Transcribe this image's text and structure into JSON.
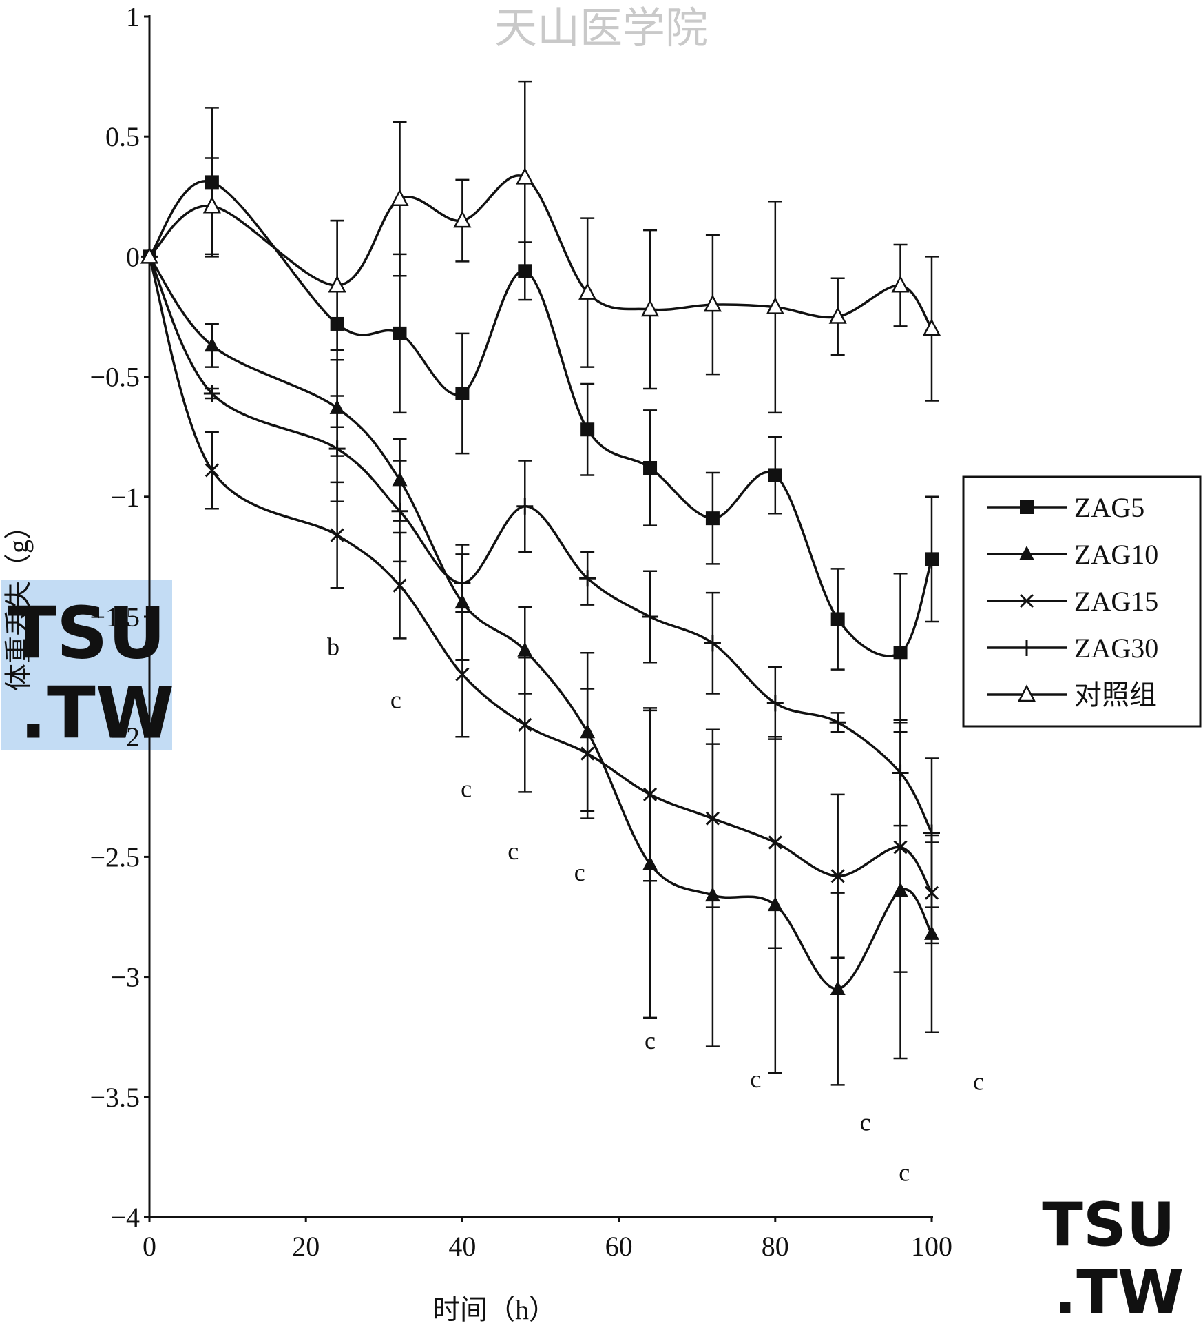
{
  "watermarks": {
    "top_text": "天山医学院",
    "logo_text_1": "TSU",
    "logo_text_2": ".TW"
  },
  "chart_data": {
    "type": "line",
    "xlabel": "时间（h）",
    "ylabel": "体重丢失（g）",
    "xlim": [
      0,
      100
    ],
    "ylim": [
      -4,
      1
    ],
    "xticks": [
      "0",
      "20",
      "40",
      "60",
      "80",
      "100"
    ],
    "yticks": [
      "1",
      "0.5",
      "0",
      "−0.5",
      "−1",
      "−1.5",
      "−2",
      "−2.5",
      "−3",
      "−3.5",
      "−4"
    ],
    "x": [
      0,
      8,
      24,
      32,
      40,
      48,
      56,
      64,
      72,
      80,
      88,
      96,
      100
    ],
    "series": [
      {
        "name": "ZAG5",
        "marker": "square-filled",
        "values": [
          0,
          0.31,
          -0.28,
          -0.32,
          -0.57,
          -0.06,
          -0.72,
          -0.88,
          -1.09,
          -0.91,
          -1.51,
          -1.65,
          -1.26
        ],
        "errors": [
          0,
          0.31,
          0.43,
          0.33,
          0.25,
          0.12,
          0.19,
          0.24,
          0.19,
          0.16,
          0.21,
          0.33,
          0.26
        ]
      },
      {
        "name": "ZAG10",
        "marker": "triangle-filled",
        "values": [
          0,
          -0.37,
          -0.63,
          -0.93,
          -1.44,
          -1.64,
          -1.98,
          -2.53,
          -2.66,
          -2.7,
          -3.05,
          -2.64,
          -2.82
        ],
        "errors": [
          0,
          0.09,
          0.2,
          0.17,
          0.24,
          0.18,
          0.33,
          0.64,
          0.63,
          0.7,
          0.4,
          0.7,
          0.41
        ]
      },
      {
        "name": "ZAG15",
        "marker": "x",
        "values": [
          0,
          -0.89,
          -1.16,
          -1.37,
          -1.74,
          -1.95,
          -2.07,
          -2.24,
          -2.34,
          -2.44,
          -2.58,
          -2.46,
          -2.65
        ],
        "errors": [
          0,
          0.16,
          0.22,
          0.22,
          0.26,
          0.28,
          0.27,
          0.36,
          0.37,
          0.44,
          0.34,
          0.52,
          0.21
        ]
      },
      {
        "name": "ZAG30",
        "marker": "plus",
        "values": [
          0,
          -0.57,
          -0.8,
          -1.06,
          -1.36,
          -1.04,
          -1.34,
          -1.5,
          -1.61,
          -1.86,
          -1.94,
          -2.15,
          -2.4
        ],
        "errors": [
          0,
          0.02,
          0.22,
          0.21,
          0.12,
          0.19,
          0.11,
          0.19,
          0.21,
          0.15,
          0.04,
          0.22,
          0.31
        ]
      },
      {
        "name": "对照组",
        "marker": "triangle-open",
        "values": [
          0,
          0.21,
          -0.12,
          0.24,
          0.15,
          0.33,
          -0.15,
          -0.22,
          -0.2,
          -0.21,
          -0.25,
          -0.12,
          -0.3
        ],
        "errors": [
          0,
          0.2,
          0.27,
          0.32,
          0.17,
          0.4,
          0.31,
          0.33,
          0.29,
          0.44,
          0.16,
          0.17,
          0.3
        ]
      }
    ],
    "annotations": [
      {
        "text": "b",
        "x": 23.5,
        "y": -1.66
      },
      {
        "text": "c",
        "x": 31.5,
        "y": -1.88
      },
      {
        "text": "c",
        "x": 40.5,
        "y": -2.25
      },
      {
        "text": "c",
        "x": 46.5,
        "y": -2.51
      },
      {
        "text": "c",
        "x": 55,
        "y": -2.6
      },
      {
        "text": "c",
        "x": 64,
        "y": -3.3
      },
      {
        "text": "c",
        "x": 77.5,
        "y": -3.46
      },
      {
        "text": "c",
        "x": 91.5,
        "y": -3.64
      },
      {
        "text": "c",
        "x": 96.5,
        "y": -3.85
      },
      {
        "text": "c",
        "x": 106,
        "y": -3.47
      }
    ],
    "legend": "right",
    "grid": false
  }
}
